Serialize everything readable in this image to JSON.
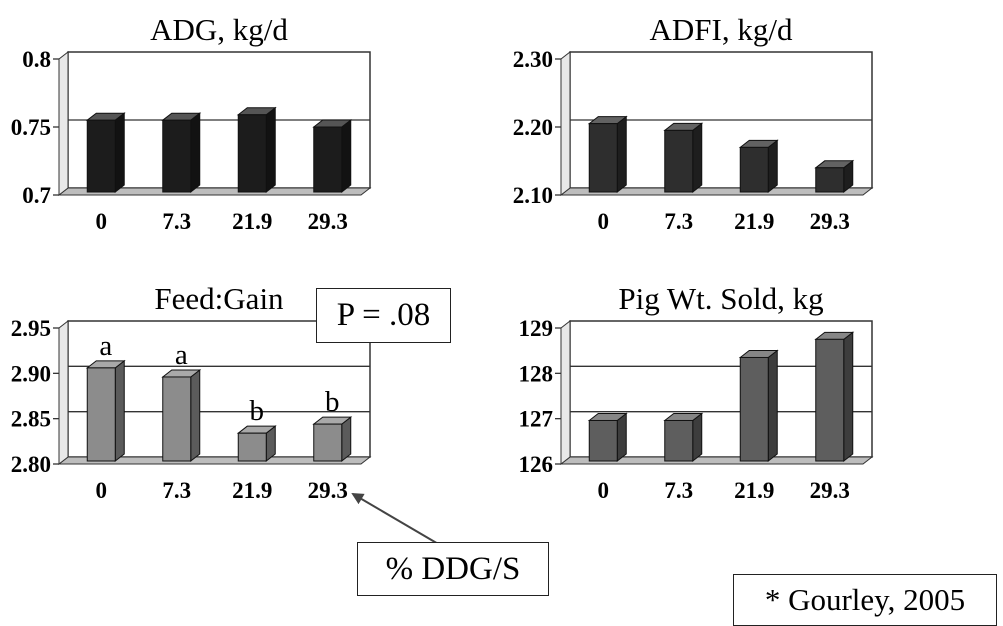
{
  "chart_data": [
    {
      "type": "bar",
      "title": "ADG, kg/d",
      "categories": [
        "0",
        "7.3",
        "21.9",
        "29.3"
      ],
      "values": [
        0.755,
        0.755,
        0.759,
        0.75
      ],
      "ylim": [
        0.7,
        0.8
      ],
      "yticks": [
        "0.7",
        "0.75",
        "0.8"
      ],
      "bar_labels": [],
      "color": "#1c1c1c",
      "grid": true
    },
    {
      "type": "bar",
      "title": "ADFI, kg/d",
      "categories": [
        "0",
        "7.3",
        "21.9",
        "29.3"
      ],
      "values": [
        2.205,
        2.195,
        2.17,
        2.14
      ],
      "ylim": [
        2.1,
        2.3
      ],
      "yticks": [
        "2.10",
        "2.20",
        "2.30"
      ],
      "bar_labels": [],
      "color": "#2e2e2e",
      "grid": true
    },
    {
      "type": "bar",
      "title": "Feed:Gain",
      "categories": [
        "0",
        "7.3",
        "21.9",
        "29.3"
      ],
      "values": [
        2.906,
        2.896,
        2.834,
        2.844
      ],
      "ylim": [
        2.8,
        2.95
      ],
      "yticks": [
        "2.80",
        "2.85",
        "2.90",
        "2.95"
      ],
      "bar_labels": [
        "a",
        "a",
        "b",
        "b"
      ],
      "color": "#8c8c8c",
      "grid": true
    },
    {
      "type": "bar",
      "title": "Pig Wt. Sold, kg",
      "categories": [
        "0",
        "7.3",
        "21.9",
        "29.3"
      ],
      "values": [
        126.96,
        126.96,
        128.35,
        128.75
      ],
      "ylim": [
        126,
        129
      ],
      "yticks": [
        "126",
        "127",
        "128",
        "129"
      ],
      "bar_labels": [],
      "color": "#5e5e5e",
      "grid": true
    }
  ],
  "annotations": {
    "p_value": "P = .08",
    "x_axis_note": "% DDG/S",
    "citation": "* Gourley, 2005"
  }
}
